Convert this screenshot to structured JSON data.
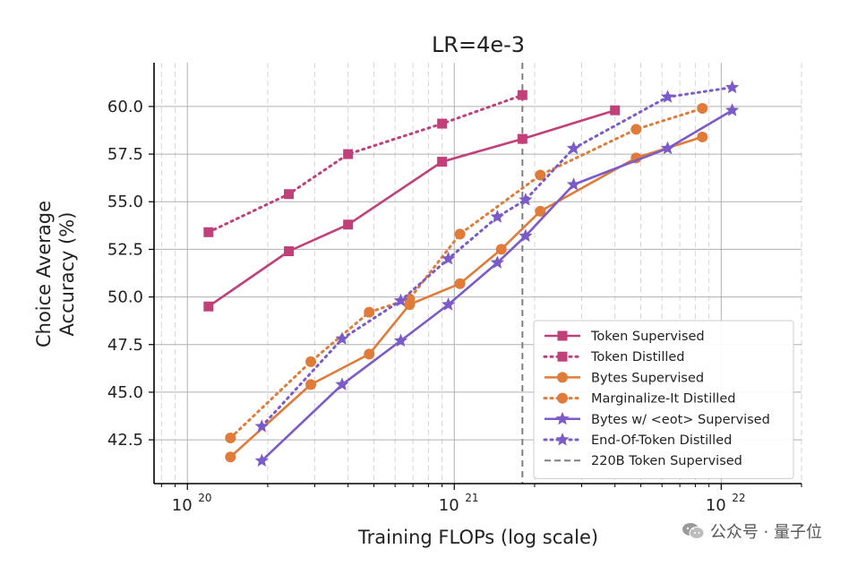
{
  "chart_data": {
    "type": "line",
    "title": "LR=4e-3",
    "xlabel": "Training FLOPs (log scale)",
    "ylabel_line1": "Choice Average",
    "ylabel_line2": "Accuracy (%)",
    "x_scale": "log",
    "xlim": [
      7.5e+19,
      2e+22
    ],
    "ylim": [
      40.2,
      62.3
    ],
    "x_ticks": [
      {
        "value": 1e+20,
        "base": "10",
        "exp": "20"
      },
      {
        "value": 1e+21,
        "base": "10",
        "exp": "21"
      },
      {
        "value": 1e+22,
        "base": "10",
        "exp": "22"
      }
    ],
    "y_ticks": [
      42.5,
      45.0,
      47.5,
      50.0,
      52.5,
      55.0,
      57.5,
      60.0
    ],
    "grid": true,
    "reference_line": {
      "x": 1.8e+21,
      "label": "220B Token Supervised",
      "color": "#7f7f7f"
    },
    "legend_position": "bottom-right",
    "series": [
      {
        "name": "Token Supervised",
        "color": "#c2407a",
        "style": "solid",
        "marker": "square",
        "x": [
          1.2e+20,
          2.4e+20,
          4e+20,
          9e+20,
          1.8e+21,
          4e+21
        ],
        "y": [
          49.5,
          52.4,
          53.8,
          57.1,
          58.3,
          59.8
        ]
      },
      {
        "name": "Token Distilled",
        "color": "#c2407a",
        "style": "dotted",
        "marker": "square",
        "x": [
          1.2e+20,
          2.4e+20,
          4e+20,
          9e+20,
          1.8e+21
        ],
        "y": [
          53.4,
          55.4,
          57.5,
          59.1,
          60.6
        ]
      },
      {
        "name": "Bytes Supervised",
        "color": "#e07b3a",
        "style": "solid",
        "marker": "circle",
        "x": [
          1.45e+20,
          2.9e+20,
          4.8e+20,
          6.8e+20,
          1.05e+21,
          1.5e+21,
          2.1e+21,
          4.8e+21,
          8.5e+21
        ],
        "y": [
          41.6,
          45.4,
          47.0,
          49.6,
          50.7,
          52.5,
          54.5,
          57.3,
          58.4
        ]
      },
      {
        "name": "Marginalize-It Distilled",
        "color": "#e07b3a",
        "style": "dotted",
        "marker": "circle",
        "x": [
          1.45e+20,
          2.9e+20,
          4.8e+20,
          6.8e+20,
          1.05e+21,
          2.1e+21,
          4.8e+21,
          8.5e+21
        ],
        "y": [
          42.6,
          46.6,
          49.2,
          49.9,
          53.3,
          56.4,
          58.8,
          59.9
        ]
      },
      {
        "name": "Bytes w/ <eot> Supervised",
        "color": "#7b5bc9",
        "style": "solid",
        "marker": "star",
        "x": [
          1.9e+20,
          3.8e+20,
          6.3e+20,
          9.5e+20,
          1.45e+21,
          1.85e+21,
          2.8e+21,
          6.3e+21,
          1.1e+22
        ],
        "y": [
          41.4,
          45.4,
          47.7,
          49.6,
          51.8,
          53.2,
          55.9,
          57.8,
          59.8
        ]
      },
      {
        "name": "End-Of-Token Distilled",
        "color": "#7b5bc9",
        "style": "dotted",
        "marker": "star",
        "x": [
          1.9e+20,
          3.8e+20,
          6.3e+20,
          9.5e+20,
          1.45e+21,
          1.85e+21,
          2.8e+21,
          6.3e+21,
          1.1e+22
        ],
        "y": [
          43.2,
          47.8,
          49.8,
          52.0,
          54.2,
          55.1,
          57.8,
          60.5,
          61.0
        ]
      }
    ]
  },
  "watermark": {
    "icon": "wechat-icon",
    "text": "公众号 · 量子位"
  }
}
